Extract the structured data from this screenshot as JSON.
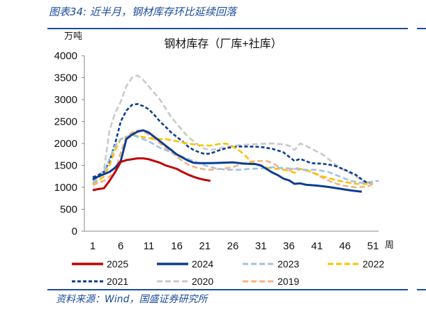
{
  "header": {
    "title": "图表34:  近半月，钢材库存环比延续回落"
  },
  "footer": {
    "source": "资料来源：Wind，国盛证券研究所"
  },
  "chart_data": {
    "type": "line",
    "title": "钢材库存（厂库+社库）",
    "ylabel": "万吨",
    "xlabel": "周",
    "ylim": [
      0,
      4000
    ],
    "xlim": [
      1,
      52
    ],
    "yticks": [
      0,
      500,
      1000,
      1500,
      2000,
      2500,
      3000,
      3500,
      4000
    ],
    "xticks": [
      1,
      6,
      11,
      16,
      21,
      26,
      31,
      36,
      41,
      46,
      51
    ],
    "grid": false,
    "legend_position": "bottom",
    "series": [
      {
        "name": "2025",
        "color": "#c00000",
        "style": "solid",
        "points": [
          [
            1,
            935
          ],
          [
            2,
            960
          ],
          [
            3,
            980
          ],
          [
            4,
            1150
          ],
          [
            5,
            1350
          ],
          [
            6,
            1580
          ],
          [
            7,
            1620
          ],
          [
            8,
            1640
          ],
          [
            9,
            1660
          ],
          [
            10,
            1660
          ],
          [
            11,
            1640
          ],
          [
            12,
            1600
          ],
          [
            13,
            1560
          ],
          [
            14,
            1500
          ],
          [
            15,
            1460
          ],
          [
            16,
            1420
          ],
          [
            17,
            1350
          ],
          [
            18,
            1290
          ],
          [
            19,
            1240
          ],
          [
            20,
            1200
          ],
          [
            21,
            1170
          ],
          [
            22,
            1150
          ]
        ]
      },
      {
        "name": "2024",
        "color": "#0b3d91",
        "style": "solid",
        "points": [
          [
            1,
            1180
          ],
          [
            2,
            1250
          ],
          [
            3,
            1300
          ],
          [
            4,
            1350
          ],
          [
            5,
            1450
          ],
          [
            6,
            1600
          ],
          [
            7,
            2100
          ],
          [
            8,
            2200
          ],
          [
            9,
            2270
          ],
          [
            10,
            2300
          ],
          [
            11,
            2250
          ],
          [
            12,
            2150
          ],
          [
            13,
            2050
          ],
          [
            14,
            1950
          ],
          [
            15,
            1850
          ],
          [
            16,
            1750
          ],
          [
            17,
            1680
          ],
          [
            18,
            1610
          ],
          [
            19,
            1560
          ],
          [
            20,
            1550
          ],
          [
            22,
            1550
          ],
          [
            24,
            1560
          ],
          [
            26,
            1570
          ],
          [
            28,
            1540
          ],
          [
            30,
            1530
          ],
          [
            31,
            1500
          ],
          [
            32,
            1420
          ],
          [
            33,
            1340
          ],
          [
            34,
            1280
          ],
          [
            35,
            1200
          ],
          [
            36,
            1160
          ],
          [
            37,
            1080
          ],
          [
            38,
            1090
          ],
          [
            39,
            1060
          ],
          [
            41,
            1040
          ],
          [
            43,
            1010
          ],
          [
            45,
            970
          ],
          [
            47,
            930
          ],
          [
            49,
            900
          ]
        ]
      },
      {
        "name": "2023",
        "color": "#9dc3e6",
        "style": "dash",
        "points": [
          [
            1,
            1100
          ],
          [
            2,
            1200
          ],
          [
            3,
            1350
          ],
          [
            4,
            1650
          ],
          [
            5,
            1950
          ],
          [
            6,
            2100
          ],
          [
            7,
            2150
          ],
          [
            8,
            2200
          ],
          [
            9,
            2150
          ],
          [
            11,
            2050
          ],
          [
            13,
            1900
          ],
          [
            15,
            1800
          ],
          [
            17,
            1700
          ],
          [
            19,
            1600
          ],
          [
            21,
            1500
          ],
          [
            23,
            1430
          ],
          [
            25,
            1400
          ],
          [
            27,
            1400
          ],
          [
            29,
            1420
          ],
          [
            31,
            1430
          ],
          [
            33,
            1460
          ],
          [
            35,
            1440
          ],
          [
            37,
            1420
          ],
          [
            39,
            1400
          ],
          [
            41,
            1400
          ],
          [
            43,
            1350
          ],
          [
            45,
            1250
          ],
          [
            47,
            1150
          ],
          [
            49,
            1100
          ],
          [
            51,
            1130
          ],
          [
            52,
            1150
          ]
        ]
      },
      {
        "name": "2022",
        "color": "#ffc000",
        "style": "dash",
        "points": [
          [
            1,
            1080
          ],
          [
            2,
            1150
          ],
          [
            3,
            1250
          ],
          [
            4,
            1500
          ],
          [
            5,
            1850
          ],
          [
            6,
            2100
          ],
          [
            7,
            2150
          ],
          [
            8,
            2200
          ],
          [
            9,
            2170
          ],
          [
            10,
            2150
          ],
          [
            12,
            2100
          ],
          [
            14,
            2100
          ],
          [
            16,
            2050
          ],
          [
            18,
            2000
          ],
          [
            20,
            1960
          ],
          [
            22,
            1950
          ],
          [
            24,
            2000
          ],
          [
            25,
            1990
          ],
          [
            26,
            1930
          ],
          [
            27,
            1850
          ],
          [
            28,
            1750
          ],
          [
            29,
            1620
          ],
          [
            30,
            1520
          ],
          [
            32,
            1450
          ],
          [
            34,
            1420
          ],
          [
            36,
            1380
          ],
          [
            37,
            1330
          ],
          [
            38,
            1420
          ],
          [
            40,
            1350
          ],
          [
            42,
            1250
          ],
          [
            44,
            1180
          ],
          [
            46,
            1120
          ],
          [
            48,
            1080
          ],
          [
            50,
            1080
          ],
          [
            51,
            1100
          ]
        ]
      },
      {
        "name": "2021",
        "color": "#0b3d91",
        "style": "dot",
        "points": [
          [
            1,
            1230
          ],
          [
            2,
            1280
          ],
          [
            3,
            1350
          ],
          [
            4,
            1600
          ],
          [
            5,
            2000
          ],
          [
            6,
            2500
          ],
          [
            7,
            2750
          ],
          [
            8,
            2880
          ],
          [
            9,
            2900
          ],
          [
            10,
            2850
          ],
          [
            11,
            2780
          ],
          [
            12,
            2650
          ],
          [
            13,
            2500
          ],
          [
            14,
            2380
          ],
          [
            15,
            2250
          ],
          [
            16,
            2150
          ],
          [
            17,
            2050
          ],
          [
            18,
            1930
          ],
          [
            19,
            1850
          ],
          [
            20,
            1800
          ],
          [
            21,
            1760
          ],
          [
            22,
            1770
          ],
          [
            23,
            1820
          ],
          [
            25,
            1900
          ],
          [
            27,
            1930
          ],
          [
            29,
            1930
          ],
          [
            31,
            1920
          ],
          [
            33,
            1880
          ],
          [
            35,
            1800
          ],
          [
            36,
            1700
          ],
          [
            37,
            1600
          ],
          [
            38,
            1650
          ],
          [
            39,
            1600
          ],
          [
            40,
            1550
          ],
          [
            42,
            1540
          ],
          [
            44,
            1500
          ],
          [
            46,
            1400
          ],
          [
            48,
            1280
          ],
          [
            49,
            1180
          ],
          [
            50,
            1100
          ],
          [
            51,
            1120
          ]
        ]
      },
      {
        "name": "2020",
        "color": "#c9c9c9",
        "style": "dash",
        "points": [
          [
            1,
            1150
          ],
          [
            2,
            1250
          ],
          [
            3,
            1400
          ],
          [
            4,
            2300
          ],
          [
            5,
            2700
          ],
          [
            6,
            2950
          ],
          [
            7,
            3300
          ],
          [
            8,
            3500
          ],
          [
            9,
            3550
          ],
          [
            10,
            3450
          ],
          [
            11,
            3300
          ],
          [
            12,
            3150
          ],
          [
            13,
            3000
          ],
          [
            14,
            2800
          ],
          [
            15,
            2600
          ],
          [
            16,
            2450
          ],
          [
            17,
            2300
          ],
          [
            18,
            2150
          ],
          [
            19,
            2050
          ],
          [
            20,
            1950
          ],
          [
            21,
            1880
          ],
          [
            22,
            1850
          ],
          [
            23,
            1870
          ],
          [
            25,
            1930
          ],
          [
            27,
            1960
          ],
          [
            29,
            1980
          ],
          [
            31,
            1990
          ],
          [
            33,
            2000
          ],
          [
            35,
            1980
          ],
          [
            36,
            1950
          ],
          [
            37,
            1850
          ],
          [
            38,
            2000
          ],
          [
            39,
            1950
          ],
          [
            40,
            1880
          ],
          [
            42,
            1750
          ],
          [
            44,
            1550
          ],
          [
            46,
            1380
          ],
          [
            48,
            1250
          ],
          [
            49,
            1150
          ],
          [
            50,
            1100
          ]
        ]
      },
      {
        "name": "2019",
        "color": "#f4b183",
        "style": "dash",
        "points": [
          [
            1,
            1050
          ],
          [
            2,
            1100
          ],
          [
            3,
            1150
          ],
          [
            4,
            1250
          ],
          [
            5,
            1350
          ],
          [
            6,
            1800
          ],
          [
            7,
            2150
          ],
          [
            8,
            2250
          ],
          [
            9,
            2300
          ],
          [
            10,
            2280
          ],
          [
            11,
            2200
          ],
          [
            12,
            2100
          ],
          [
            13,
            2000
          ],
          [
            14,
            1900
          ],
          [
            15,
            1800
          ],
          [
            16,
            1700
          ],
          [
            17,
            1600
          ],
          [
            18,
            1520
          ],
          [
            19,
            1470
          ],
          [
            20,
            1430
          ],
          [
            21,
            1410
          ],
          [
            22,
            1400
          ],
          [
            24,
            1420
          ],
          [
            26,
            1460
          ],
          [
            28,
            1550
          ],
          [
            30,
            1600
          ],
          [
            32,
            1600
          ],
          [
            33,
            1560
          ],
          [
            34,
            1480
          ],
          [
            35,
            1400
          ],
          [
            36,
            1380
          ],
          [
            37,
            1450
          ],
          [
            38,
            1420
          ],
          [
            40,
            1350
          ],
          [
            42,
            1220
          ],
          [
            44,
            1100
          ],
          [
            46,
            1030
          ],
          [
            48,
            1000
          ],
          [
            50,
            1020
          ],
          [
            51,
            1080
          ]
        ]
      }
    ]
  }
}
